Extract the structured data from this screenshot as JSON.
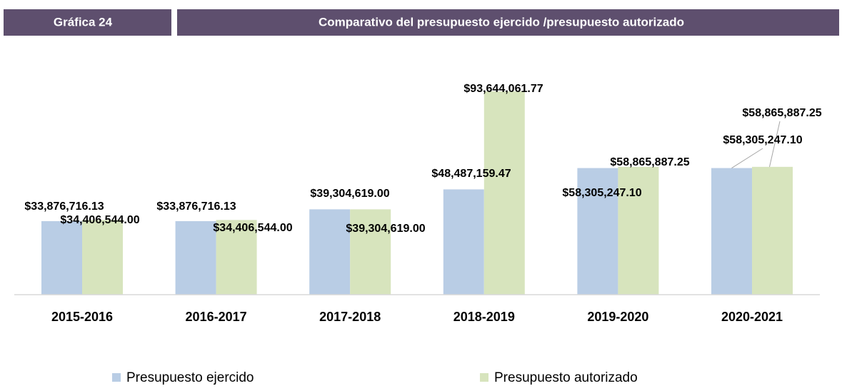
{
  "header": {
    "label": "Gráfica 24"
  },
  "chart_data": {
    "type": "bar",
    "title": "Comparativo del presupuesto ejercido /presupuesto autorizado",
    "categories": [
      "2015-2016",
      "2016-2017",
      "2017-2018",
      "2018-2019",
      "2019-2020",
      "2020-2021"
    ],
    "series": [
      {
        "name": "Presupuesto ejercido",
        "color": "#b9cde5",
        "values": [
          33876716.13,
          33876716.13,
          39304619.0,
          48487159.47,
          58305247.1,
          58305247.1
        ],
        "value_labels": [
          "$33,876,716.13",
          "$33,876,716.13",
          "$39,304,619.00",
          "$48,487,159.47",
          "$58,305,247.10",
          "$58,305,247.10"
        ]
      },
      {
        "name": "Presupuesto autorizado",
        "color": "#d7e4bd",
        "values": [
          34406544.0,
          34406544.0,
          39304619.0,
          93644061.77,
          58865887.25,
          58865887.25
        ],
        "value_labels": [
          "$34,406,544.00",
          "$34,406,544.00",
          "$39,304,619.00",
          "$93,644,061.77",
          "$58,865,887.25",
          "$58,865,887.25"
        ]
      }
    ],
    "legend": "bottom"
  }
}
